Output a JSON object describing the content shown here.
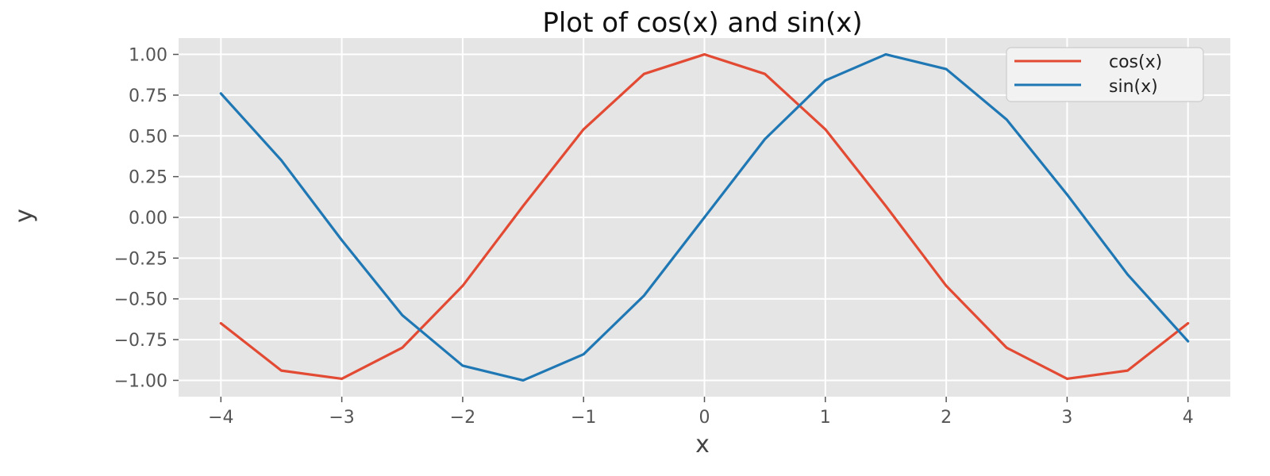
{
  "chart_data": {
    "type": "line",
    "title": "Plot of cos(x) and sin(x)",
    "xlabel": "x",
    "ylabel": "y",
    "xlim": [
      -4.35,
      4.35
    ],
    "ylim": [
      -1.1,
      1.1
    ],
    "grid": true,
    "legend_position": "top-right",
    "x_ticks": [
      -4,
      -3,
      -2,
      -1,
      0,
      1,
      2,
      3,
      4
    ],
    "x_tick_labels": [
      "−4",
      "−3",
      "−2",
      "−1",
      "0",
      "1",
      "2",
      "3",
      "4"
    ],
    "y_ticks": [
      1.0,
      0.75,
      0.5,
      0.25,
      0.0,
      -0.25,
      -0.5,
      -0.75,
      -1.0
    ],
    "y_tick_labels": [
      "1.00",
      "0.75",
      "0.50",
      "0.25",
      "0.00",
      "−0.25",
      "−0.50",
      "−0.75",
      "−1.00"
    ],
    "x": [
      -4.0,
      -3.5,
      -3.0,
      -2.5,
      -2.0,
      -1.5,
      -1.0,
      -0.5,
      0.0,
      0.5,
      1.0,
      1.5,
      2.0,
      2.5,
      3.0,
      3.5,
      4.0
    ],
    "series": [
      {
        "name": "cos(x)",
        "color": "#e24a33",
        "values": [
          -0.65,
          -0.94,
          -0.99,
          -0.8,
          -0.42,
          0.07,
          0.54,
          0.88,
          1.0,
          0.88,
          0.54,
          0.07,
          -0.42,
          -0.8,
          -0.99,
          -0.94,
          -0.65
        ]
      },
      {
        "name": "sin(x)",
        "color": "#1f77b4",
        "values": [
          0.76,
          0.35,
          -0.14,
          -0.6,
          -0.91,
          -1.0,
          -0.84,
          -0.48,
          0.0,
          0.48,
          0.84,
          1.0,
          0.91,
          0.6,
          0.14,
          -0.35,
          -0.76
        ]
      }
    ]
  },
  "colors": {
    "plot_background": "#e5e5e5",
    "grid": "#ffffff"
  }
}
